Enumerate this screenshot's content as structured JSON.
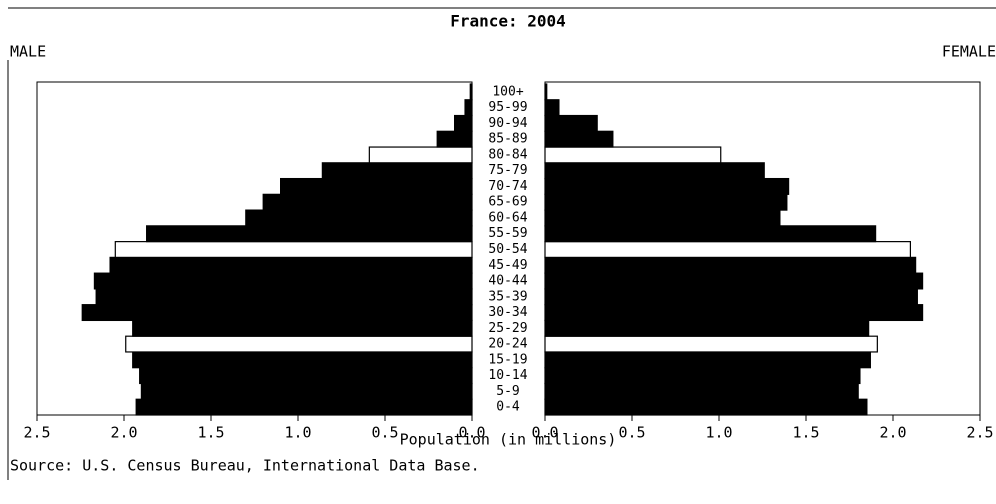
{
  "chart_data": {
    "type": "pyramid",
    "title": "France: 2004",
    "x_label": "Population (in millions)",
    "source": "Source: U.S. Census Bureau, International Data Base.",
    "categories": [
      "0-4",
      "5-9",
      "10-14",
      "15-19",
      "20-24",
      "25-29",
      "30-34",
      "35-39",
      "40-44",
      "45-49",
      "50-54",
      "55-59",
      "60-64",
      "65-69",
      "70-74",
      "75-79",
      "80-84",
      "85-89",
      "90-94",
      "95-99",
      "100+"
    ],
    "series": [
      {
        "name": "MALE",
        "side": "left",
        "colors": [
          "#000000",
          "#000000",
          "#000000",
          "#000000",
          "#ffffff",
          "#000000",
          "#000000",
          "#000000",
          "#000000",
          "#000000",
          "#ffffff",
          "#000000",
          "#000000",
          "#000000",
          "#000000",
          "#000000",
          "#ffffff",
          "#000000",
          "#000000",
          "#000000",
          "#000000"
        ],
        "values": [
          1.93,
          1.9,
          1.91,
          1.95,
          1.99,
          1.95,
          2.24,
          2.16,
          2.17,
          2.08,
          2.05,
          1.87,
          1.3,
          1.2,
          1.1,
          0.86,
          0.59,
          0.2,
          0.1,
          0.04,
          0.01
        ]
      },
      {
        "name": "FEMALE",
        "side": "right",
        "colors": [
          "#000000",
          "#000000",
          "#000000",
          "#000000",
          "#ffffff",
          "#000000",
          "#000000",
          "#000000",
          "#000000",
          "#000000",
          "#ffffff",
          "#000000",
          "#000000",
          "#000000",
          "#000000",
          "#000000",
          "#ffffff",
          "#000000",
          "#000000",
          "#000000",
          "#000000"
        ],
        "values": [
          1.85,
          1.8,
          1.81,
          1.87,
          1.91,
          1.86,
          2.17,
          2.14,
          2.17,
          2.13,
          2.1,
          1.9,
          1.35,
          1.39,
          1.4,
          1.26,
          1.01,
          0.39,
          0.3,
          0.08,
          0.01
        ]
      }
    ],
    "xlim": [
      0,
      2.5
    ],
    "xticks": [
      {
        "value": 0,
        "label": "0.0"
      },
      0.5,
      {
        "value": 1,
        "label": "1.0"
      },
      1.5,
      {
        "value": 2,
        "label": "2.0"
      },
      2.5
    ]
  }
}
